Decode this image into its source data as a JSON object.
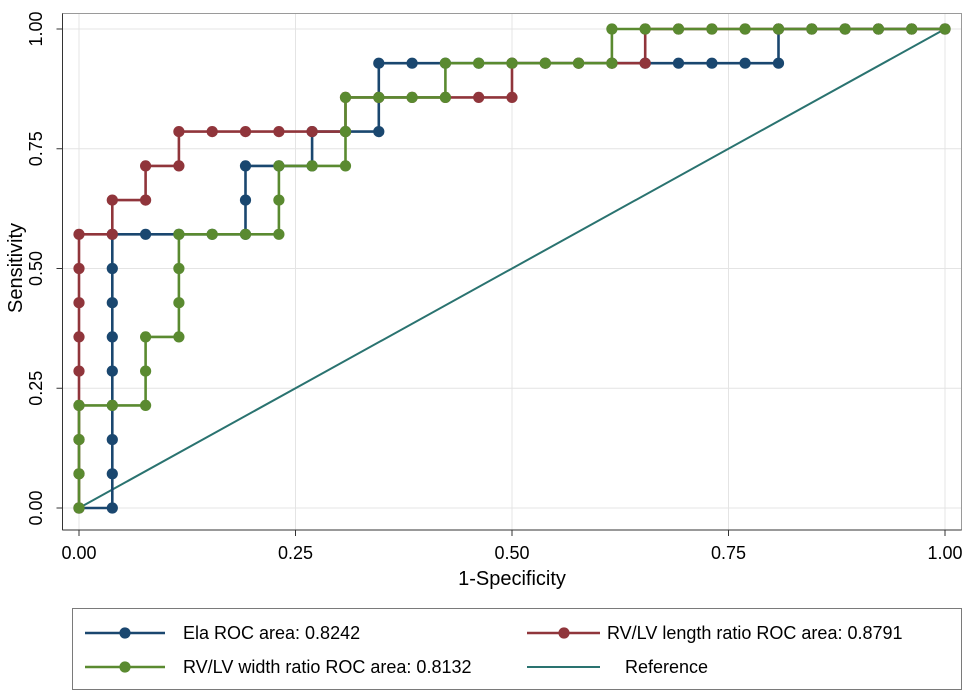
{
  "chart_data": {
    "type": "line",
    "xlabel": "1-Specificity",
    "ylabel": "Sensitivity",
    "xlim": [
      0,
      1
    ],
    "ylim": [
      0,
      1
    ],
    "x_ticks": {
      "values": [
        0,
        0.25,
        0.5,
        0.75,
        1
      ],
      "labels": [
        "0.00",
        "0.25",
        "0.50",
        "0.75",
        "1.00"
      ]
    },
    "y_ticks": {
      "values": [
        0,
        0.25,
        0.5,
        0.75,
        1
      ],
      "labels": [
        "0.00",
        "0.25",
        "0.50",
        "0.75",
        "1.00"
      ]
    },
    "grid": true,
    "legend_position": "bottom",
    "series": [
      {
        "name": "Ela ROC area: 0.8242",
        "color": "#1a476f",
        "markers": true,
        "points": [
          [
            0,
            0
          ],
          [
            0.0385,
            0
          ],
          [
            0.0385,
            0.0714
          ],
          [
            0.0385,
            0.1429
          ],
          [
            0.0385,
            0.2143
          ],
          [
            0.0385,
            0.2857
          ],
          [
            0.0385,
            0.3571
          ],
          [
            0.0385,
            0.4286
          ],
          [
            0.0385,
            0.5
          ],
          [
            0.0385,
            0.5714
          ],
          [
            0.0769,
            0.5714
          ],
          [
            0.1154,
            0.5714
          ],
          [
            0.1538,
            0.5714
          ],
          [
            0.1923,
            0.5714
          ],
          [
            0.1923,
            0.6429
          ],
          [
            0.1923,
            0.7143
          ],
          [
            0.2308,
            0.7143
          ],
          [
            0.2692,
            0.7143
          ],
          [
            0.2692,
            0.7857
          ],
          [
            0.3077,
            0.7857
          ],
          [
            0.3462,
            0.7857
          ],
          [
            0.3462,
            0.8571
          ],
          [
            0.3462,
            0.9286
          ],
          [
            0.3846,
            0.9286
          ],
          [
            0.4231,
            0.9286
          ],
          [
            0.4615,
            0.9286
          ],
          [
            0.5,
            0.9286
          ],
          [
            0.5385,
            0.9286
          ],
          [
            0.5769,
            0.9286
          ],
          [
            0.6154,
            0.9286
          ],
          [
            0.6538,
            0.9286
          ],
          [
            0.6923,
            0.9286
          ],
          [
            0.7308,
            0.9286
          ],
          [
            0.7692,
            0.9286
          ],
          [
            0.8077,
            0.9286
          ],
          [
            0.8077,
            1
          ],
          [
            0.8462,
            1
          ],
          [
            0.8846,
            1
          ],
          [
            0.9231,
            1
          ],
          [
            0.9615,
            1
          ],
          [
            1,
            1
          ]
        ]
      },
      {
        "name": "RV/LV length ratio ROC area: 0.8791",
        "color": "#90353b",
        "markers": true,
        "points": [
          [
            0,
            0
          ],
          [
            0,
            0.0714
          ],
          [
            0,
            0.1429
          ],
          [
            0,
            0.2143
          ],
          [
            0,
            0.2857
          ],
          [
            0,
            0.3571
          ],
          [
            0,
            0.4286
          ],
          [
            0,
            0.5
          ],
          [
            0,
            0.5714
          ],
          [
            0.0385,
            0.5714
          ],
          [
            0.0385,
            0.6429
          ],
          [
            0.0769,
            0.6429
          ],
          [
            0.0769,
            0.7143
          ],
          [
            0.1154,
            0.7143
          ],
          [
            0.1154,
            0.7857
          ],
          [
            0.1538,
            0.7857
          ],
          [
            0.1923,
            0.7857
          ],
          [
            0.2308,
            0.7857
          ],
          [
            0.2692,
            0.7857
          ],
          [
            0.3077,
            0.7857
          ],
          [
            0.3077,
            0.8571
          ],
          [
            0.3462,
            0.8571
          ],
          [
            0.3846,
            0.8571
          ],
          [
            0.4231,
            0.8571
          ],
          [
            0.4615,
            0.8571
          ],
          [
            0.5,
            0.8571
          ],
          [
            0.5,
            0.9286
          ],
          [
            0.5385,
            0.9286
          ],
          [
            0.5769,
            0.9286
          ],
          [
            0.6154,
            0.9286
          ],
          [
            0.6538,
            0.9286
          ],
          [
            0.6538,
            1
          ],
          [
            0.6923,
            1
          ],
          [
            0.7308,
            1
          ],
          [
            0.7692,
            1
          ],
          [
            0.8077,
            1
          ],
          [
            0.8462,
            1
          ],
          [
            0.8846,
            1
          ],
          [
            0.9231,
            1
          ],
          [
            0.9615,
            1
          ],
          [
            1,
            1
          ]
        ]
      },
      {
        "name": "RV/LV width ratio ROC area: 0.8132",
        "color": "#5a8a30",
        "markers": true,
        "points": [
          [
            0,
            0
          ],
          [
            0,
            0.0714
          ],
          [
            0,
            0.1429
          ],
          [
            0,
            0.2143
          ],
          [
            0.0385,
            0.2143
          ],
          [
            0.0769,
            0.2143
          ],
          [
            0.0769,
            0.2857
          ],
          [
            0.0769,
            0.3571
          ],
          [
            0.1154,
            0.3571
          ],
          [
            0.1154,
            0.4286
          ],
          [
            0.1154,
            0.5
          ],
          [
            0.1154,
            0.5714
          ],
          [
            0.1538,
            0.5714
          ],
          [
            0.1923,
            0.5714
          ],
          [
            0.2308,
            0.5714
          ],
          [
            0.2308,
            0.6429
          ],
          [
            0.2308,
            0.7143
          ],
          [
            0.2692,
            0.7143
          ],
          [
            0.3077,
            0.7143
          ],
          [
            0.3077,
            0.7857
          ],
          [
            0.3077,
            0.8571
          ],
          [
            0.3462,
            0.8571
          ],
          [
            0.3846,
            0.8571
          ],
          [
            0.4231,
            0.8571
          ],
          [
            0.4231,
            0.9286
          ],
          [
            0.4615,
            0.9286
          ],
          [
            0.5,
            0.9286
          ],
          [
            0.5385,
            0.9286
          ],
          [
            0.5769,
            0.9286
          ],
          [
            0.6154,
            0.9286
          ],
          [
            0.6154,
            1
          ],
          [
            0.6538,
            1
          ],
          [
            0.6923,
            1
          ],
          [
            0.7308,
            1
          ],
          [
            0.7692,
            1
          ],
          [
            0.8077,
            1
          ],
          [
            0.8462,
            1
          ],
          [
            0.8846,
            1
          ],
          [
            0.9231,
            1
          ],
          [
            0.9615,
            1
          ],
          [
            1,
            1
          ]
        ]
      },
      {
        "name": "Reference",
        "color": "#2a7370",
        "markers": false,
        "points": [
          [
            0,
            0
          ],
          [
            1,
            1
          ]
        ]
      }
    ]
  }
}
